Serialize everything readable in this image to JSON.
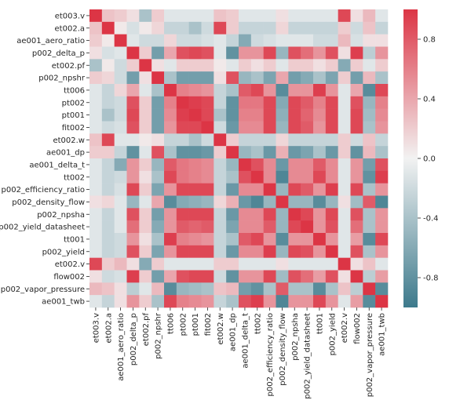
{
  "chart_data": {
    "type": "heatmap",
    "title": "",
    "xlabel": "",
    "ylabel": "",
    "labels": [
      "et003.v",
      "et002.a",
      "ae001_aero_ratio",
      "p002_delta_p",
      "et002.pf",
      "p002_npshr",
      "tt006",
      "pt002",
      "pt001",
      "fit002",
      "et002.w",
      "ae001_dp",
      "ae001_delta_t",
      "tt002",
      "p002_efficiency_ratio",
      "p002_density_flow",
      "p002_npsha",
      "p002_yield_datasheet",
      "tt001",
      "p002_yield",
      "et002.v",
      "flow002",
      "p002_vapor_pressure",
      "ae001_twb"
    ],
    "colorbar": {
      "min": -1,
      "max": 1,
      "ticks": [
        -0.8,
        -0.4,
        0.0,
        0.4,
        0.8
      ],
      "tick_labels": [
        "-0.8",
        "-0.4",
        "0.0",
        "0.4",
        "0.8"
      ]
    },
    "colors": {
      "negative": "#3d7a8c",
      "neutral": "#f2f2f2",
      "positive": "#dc3545"
    },
    "values": [
      [
        1.0,
        0.25,
        0.2,
        0.1,
        -0.4,
        0.2,
        -0.1,
        -0.1,
        -0.1,
        -0.1,
        0.25,
        0.2,
        -0.1,
        -0.1,
        -0.1,
        0.1,
        -0.1,
        -0.1,
        -0.1,
        -0.1,
        0.9,
        0.1,
        0.3,
        -0.1
      ],
      [
        0.25,
        1.0,
        0.05,
        -0.15,
        0.05,
        0.15,
        -0.25,
        -0.25,
        -0.4,
        -0.2,
        0.9,
        0.2,
        -0.25,
        -0.25,
        -0.25,
        0.15,
        -0.25,
        -0.25,
        -0.25,
        -0.25,
        0.2,
        -0.2,
        0.25,
        -0.25
      ],
      [
        0.2,
        0.05,
        1.0,
        -0.1,
        -0.2,
        -0.2,
        0.15,
        -0.2,
        -0.2,
        -0.15,
        -0.1,
        -0.25,
        -0.6,
        -0.2,
        -0.15,
        -0.1,
        -0.1,
        -0.1,
        -0.2,
        -0.2,
        0.3,
        -0.15,
        0.1,
        0.1
      ],
      [
        0.1,
        -0.15,
        -0.1,
        1.0,
        0.2,
        -0.7,
        0.4,
        0.85,
        0.9,
        0.85,
        -0.1,
        -0.8,
        0.5,
        0.5,
        0.9,
        -0.5,
        0.85,
        0.7,
        0.5,
        0.85,
        0.1,
        0.95,
        -0.3,
        0.5
      ],
      [
        -0.4,
        0.05,
        -0.2,
        0.2,
        1.0,
        0.1,
        -0.1,
        0.2,
        0.2,
        0.2,
        0.05,
        -0.1,
        0.2,
        0.1,
        0.2,
        -0.1,
        0.2,
        0.2,
        0.1,
        0.2,
        -0.6,
        0.2,
        -0.1,
        0.2
      ],
      [
        0.2,
        0.15,
        -0.2,
        -0.7,
        0.1,
        1.0,
        -0.4,
        -0.7,
        -0.7,
        -0.7,
        0.1,
        0.85,
        -0.5,
        -0.4,
        -0.65,
        0.4,
        -0.7,
        -0.6,
        -0.4,
        -0.65,
        0.2,
        -0.7,
        0.3,
        -0.4
      ],
      [
        -0.1,
        -0.25,
        0.15,
        0.4,
        -0.1,
        -0.4,
        1.0,
        0.6,
        0.55,
        0.5,
        -0.25,
        -0.4,
        0.8,
        0.9,
        0.5,
        -0.85,
        0.5,
        0.5,
        0.95,
        0.5,
        -0.1,
        0.4,
        -0.85,
        0.9
      ],
      [
        -0.1,
        -0.25,
        -0.2,
        0.85,
        0.2,
        -0.7,
        0.6,
        1.0,
        0.95,
        0.9,
        -0.25,
        -0.8,
        0.65,
        0.65,
        0.9,
        -0.6,
        0.9,
        0.8,
        0.6,
        0.9,
        -0.1,
        0.85,
        -0.5,
        0.6
      ],
      [
        -0.1,
        -0.4,
        -0.2,
        0.9,
        0.2,
        -0.7,
        0.55,
        0.95,
        1.0,
        0.9,
        -0.4,
        -0.8,
        0.6,
        0.6,
        0.9,
        -0.55,
        0.9,
        0.75,
        0.55,
        0.9,
        -0.1,
        0.9,
        -0.45,
        0.55
      ],
      [
        -0.1,
        -0.2,
        -0.15,
        0.85,
        0.2,
        -0.7,
        0.5,
        0.9,
        0.9,
        1.0,
        -0.2,
        -0.75,
        0.55,
        0.55,
        0.9,
        -0.5,
        0.9,
        0.8,
        0.5,
        0.9,
        -0.1,
        0.9,
        -0.4,
        0.5
      ],
      [
        0.25,
        0.9,
        -0.1,
        -0.1,
        0.05,
        0.1,
        -0.25,
        -0.25,
        -0.4,
        -0.2,
        1.0,
        0.2,
        -0.25,
        -0.25,
        -0.25,
        0.15,
        -0.25,
        -0.25,
        -0.25,
        -0.25,
        0.2,
        -0.2,
        0.25,
        -0.25
      ],
      [
        0.2,
        0.2,
        -0.25,
        -0.8,
        -0.1,
        0.85,
        -0.4,
        -0.8,
        -0.8,
        -0.75,
        0.2,
        1.0,
        -0.5,
        -0.4,
        -0.75,
        0.35,
        -0.75,
        -0.65,
        -0.4,
        -0.75,
        0.2,
        -0.8,
        0.3,
        -0.4
      ],
      [
        -0.1,
        -0.25,
        -0.6,
        0.5,
        0.2,
        -0.5,
        0.8,
        0.65,
        0.6,
        0.55,
        -0.25,
        -0.5,
        1.0,
        0.85,
        0.55,
        -0.75,
        0.55,
        0.55,
        0.8,
        0.55,
        -0.1,
        0.5,
        -0.7,
        0.85
      ],
      [
        -0.1,
        -0.25,
        -0.2,
        0.5,
        0.1,
        -0.4,
        0.9,
        0.65,
        0.6,
        0.55,
        -0.25,
        -0.4,
        0.85,
        1.0,
        0.55,
        -0.9,
        0.55,
        0.55,
        0.9,
        0.55,
        -0.1,
        0.5,
        -0.8,
        0.95
      ],
      [
        -0.1,
        -0.25,
        -0.15,
        0.9,
        0.2,
        -0.65,
        0.5,
        0.9,
        0.9,
        0.9,
        -0.25,
        -0.75,
        0.55,
        0.55,
        1.0,
        -0.5,
        0.9,
        0.8,
        0.5,
        0.95,
        -0.1,
        0.9,
        -0.4,
        0.5
      ],
      [
        0.1,
        0.15,
        -0.1,
        -0.5,
        -0.1,
        0.4,
        -0.85,
        -0.6,
        -0.55,
        -0.5,
        0.15,
        0.35,
        -0.75,
        -0.9,
        -0.5,
        1.0,
        -0.5,
        -0.5,
        -0.85,
        -0.5,
        0.1,
        -0.45,
        0.8,
        -0.9
      ],
      [
        -0.1,
        -0.25,
        -0.1,
        0.85,
        0.2,
        -0.7,
        0.5,
        0.9,
        0.9,
        0.9,
        -0.25,
        -0.75,
        0.55,
        0.55,
        0.9,
        -0.5,
        1.0,
        0.9,
        0.5,
        0.9,
        -0.1,
        0.85,
        -0.4,
        0.5
      ],
      [
        -0.1,
        -0.25,
        -0.1,
        0.7,
        0.2,
        -0.6,
        0.5,
        0.8,
        0.75,
        0.8,
        -0.25,
        -0.65,
        0.55,
        0.55,
        0.8,
        -0.5,
        0.9,
        1.0,
        0.5,
        0.85,
        -0.1,
        0.7,
        -0.4,
        0.5
      ],
      [
        -0.1,
        -0.25,
        -0.2,
        0.5,
        0.1,
        -0.4,
        0.95,
        0.6,
        0.55,
        0.5,
        -0.25,
        -0.4,
        0.8,
        0.9,
        0.5,
        -0.85,
        0.5,
        0.5,
        1.0,
        0.5,
        -0.1,
        0.45,
        -0.85,
        0.9
      ],
      [
        -0.1,
        -0.25,
        -0.2,
        0.85,
        0.2,
        -0.65,
        0.5,
        0.9,
        0.9,
        0.9,
        -0.25,
        -0.75,
        0.55,
        0.55,
        0.95,
        -0.5,
        0.9,
        0.85,
        0.5,
        1.0,
        -0.1,
        0.85,
        -0.4,
        0.5
      ],
      [
        0.9,
        0.2,
        0.3,
        0.1,
        -0.6,
        0.2,
        -0.1,
        -0.1,
        -0.1,
        -0.1,
        0.2,
        0.2,
        -0.1,
        -0.1,
        -0.1,
        0.1,
        -0.1,
        -0.1,
        -0.1,
        -0.1,
        1.0,
        0.1,
        0.25,
        -0.1
      ],
      [
        0.1,
        -0.2,
        -0.15,
        0.95,
        0.2,
        -0.7,
        0.4,
        0.85,
        0.9,
        0.9,
        -0.2,
        -0.8,
        0.5,
        0.5,
        0.9,
        -0.45,
        0.85,
        0.7,
        0.45,
        0.85,
        0.1,
        1.0,
        -0.3,
        0.45
      ],
      [
        0.3,
        0.25,
        0.1,
        -0.3,
        -0.1,
        0.3,
        -0.85,
        -0.5,
        -0.45,
        -0.4,
        0.25,
        0.3,
        -0.7,
        -0.8,
        -0.4,
        0.8,
        -0.4,
        -0.4,
        -0.85,
        -0.4,
        0.25,
        -0.3,
        1.0,
        -0.85
      ],
      [
        -0.1,
        -0.25,
        0.1,
        0.5,
        0.2,
        -0.4,
        0.9,
        0.6,
        0.55,
        0.5,
        -0.25,
        -0.4,
        0.85,
        0.95,
        0.5,
        -0.9,
        0.5,
        0.5,
        0.9,
        0.5,
        -0.1,
        0.45,
        -0.85,
        1.0
      ]
    ]
  }
}
